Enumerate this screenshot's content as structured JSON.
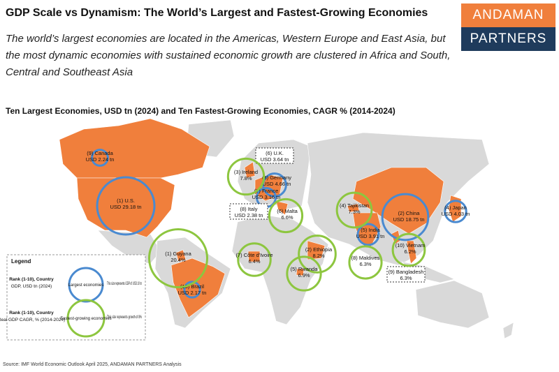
{
  "header": {
    "title": "GDP Scale vs Dynamism: The World’s Largest and Fastest-Growing Economies",
    "subtitle": "The world’s largest economies are located in the Americas, Western Europe and East Asia, but the most dynamic economies with sustained economic growth are clustered in Africa and South, Central and Southeast Asia",
    "logo_top": "ANDAMAN",
    "logo_bottom": "PARTNERS"
  },
  "map_title": "Ten Largest Economies, USD tn (2024) and Ten Fastest-Growing Economies, CAGR % (2014-2024)",
  "largest": [
    {
      "name": "(1) U.S.",
      "value": 29.18,
      "value_label": "USD 29.18 tn"
    },
    {
      "name": "(2) China",
      "value": 18.75,
      "value_label": "USD 18.75 tn"
    },
    {
      "name": "(3) Germany",
      "value": 4.66,
      "value_label": "USD 4.66 tn"
    },
    {
      "name": "(4) Japan",
      "value": 4.03,
      "value_label": "USD 4.03 tn"
    },
    {
      "name": "(5) India",
      "value": 3.91,
      "value_label": "USD 3.91 tn"
    },
    {
      "name": "(6) U.K.",
      "value": 3.64,
      "value_label": "USD 3.64 tn"
    },
    {
      "name": "(7) France",
      "value": 3.16,
      "value_label": "USD 3.16 tn"
    },
    {
      "name": "(8) Italy",
      "value": 2.38,
      "value_label": "USD 2.38 tn"
    },
    {
      "name": "(9) Canada",
      "value": 2.24,
      "value_label": "USD 2.24 tn"
    },
    {
      "name": "(10) Brazil",
      "value": 2.17,
      "value_label": "USD 2.17 tn"
    }
  ],
  "fastest": [
    {
      "name": "(1) Guyana",
      "value": 20.4,
      "value_label": "20.4%"
    },
    {
      "name": "(2) Ethiopia",
      "value": 8.2,
      "value_label": "8.2%"
    },
    {
      "name": "(3) Ireland",
      "value": 7.8,
      "value_label": "7.8%"
    },
    {
      "name": "(4) Tajikistan",
      "value": 7.3,
      "value_label": "7.3%"
    },
    {
      "name": "(5) Rwanda",
      "value": 6.9,
      "value_label": "6.9%"
    },
    {
      "name": "(6) Malta",
      "value": 6.6,
      "value_label": "6.6%"
    },
    {
      "name": "(7) Côte d'Ivoire",
      "value": 6.4,
      "value_label": "6.4%"
    },
    {
      "name": "(8) Maldives",
      "value": 6.3,
      "value_label": "6.3%"
    },
    {
      "name": "(9) Bangladesh",
      "value": 6.3,
      "value_label": "6.3%"
    },
    {
      "name": "(10) Vietnam",
      "value": 6.2,
      "value_label": "6.2%"
    }
  ],
  "legend": {
    "title": "Legend",
    "largest": {
      "heading": "Rank (1-10), Country",
      "subheading": "GDP, USD tn (2024)",
      "circle_label": "Largest economies",
      "size_note": "This size represents GDP of USD 10 tn",
      "size_value": 10
    },
    "fastest": {
      "heading": "Rank (1-10), Country",
      "subheading": "Real GDP CAGR, % (2014-2024)",
      "circle_label": "Fastest-growing economies",
      "size_note": "This size represents growth of 8%",
      "size_value": 8
    }
  },
  "source": "Source: IMF World Economic Outlook April 2025, ANDAMAN PARTNERS Analysis"
}
